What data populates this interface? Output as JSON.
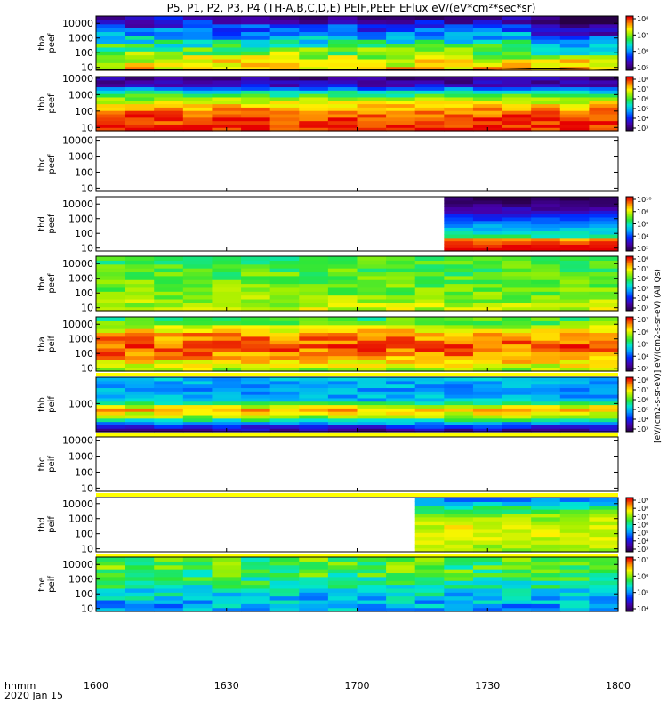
{
  "chart_data": {
    "type": "heatmap",
    "title": "P5, P1, P2, P3, P4 (TH-A,B,C,D,E) PEIF,PEEF EFlux eV/(eV*cm²*sec*sr)",
    "x_axis": {
      "unit_label": "hhmm",
      "date_label": "2020 Jan 15",
      "ticks": [
        "1600",
        "1630",
        "1700",
        "1730",
        "1800"
      ],
      "range_minutes": [
        0,
        120
      ]
    },
    "colorbar_label": "[eV/(cm2-s-sr-eV)] eV/(cm2-s-sr-eV) (All Qs)",
    "panels": [
      {
        "name": "tha-peef",
        "ylabel": [
          "tha",
          "peef"
        ],
        "yticks": [
          "10",
          "100",
          "1000",
          "10000"
        ],
        "yrange_log": [
          0.8,
          4.5
        ],
        "data_start_min": 0,
        "cbar_ticks": [
          "10⁵",
          "10⁶",
          "10⁷",
          "10⁸"
        ],
        "cbar_range": [
          4.8,
          8.5
        ],
        "levels": [
          7.8,
          7.6,
          7.2,
          6.7,
          6.1,
          5.6,
          5.2
        ],
        "trace": [
          0.85,
          0.85,
          0.85,
          0.85,
          0.85,
          0.85,
          0.85,
          0.85,
          0.85,
          0.85,
          0.85,
          0.85,
          0.85,
          0.85,
          0.9,
          0.95,
          0.95,
          0.9,
          0.85
        ]
      },
      {
        "name": "thb-peef",
        "ylabel": [
          "thb",
          "peef"
        ],
        "yticks": [
          "10",
          "100",
          "1000",
          "10000"
        ],
        "yrange_log": [
          0.8,
          4.1
        ],
        "data_start_min": 0,
        "cbar_ticks": [
          "10³",
          "10⁴",
          "10⁵",
          "10⁶",
          "10⁷",
          "10⁸"
        ],
        "cbar_range": [
          2.5,
          8.3
        ],
        "levels": [
          8.2,
          8.1,
          7.9,
          7.4,
          6.6,
          5.3,
          3.3,
          3.0
        ]
      },
      {
        "name": "thc-peef",
        "ylabel": [
          "thc",
          "peef"
        ],
        "yticks": [
          "10",
          "100",
          "1000",
          "10000"
        ],
        "yrange_log": [
          0.8,
          4.2
        ],
        "empty": true
      },
      {
        "name": "thd-peef",
        "ylabel": [
          "thd",
          "peef"
        ],
        "yticks": [
          "10",
          "100",
          "1000",
          "10000"
        ],
        "yrange_log": [
          0.8,
          4.5
        ],
        "data_start_min": 78,
        "cbar_ticks": [
          "10²",
          "10⁴",
          "10⁶",
          "10⁸",
          "10¹⁰"
        ],
        "cbar_range": [
          1.0,
          10.5
        ],
        "levels": [
          8.5,
          7.5,
          6.0,
          4.8,
          3.8,
          2.6,
          1.5,
          1.2
        ]
      },
      {
        "name": "the-peef",
        "ylabel": [
          "the",
          "peef"
        ],
        "yticks": [
          "10",
          "100",
          "1000",
          "10000"
        ],
        "yrange_log": [
          0.8,
          4.5
        ],
        "data_start_min": 0,
        "cbar_ticks": [
          "10³",
          "10⁴",
          "10⁵",
          "10⁶",
          "10⁷",
          "10⁸"
        ],
        "cbar_range": [
          2.5,
          8.4
        ],
        "levels": [
          6.8,
          6.5,
          6.3,
          6.2,
          6.1,
          6.0,
          5.9
        ]
      },
      {
        "name": "tha-peif",
        "ylabel": [
          "tha",
          "peif"
        ],
        "yticks": [
          "10",
          "100",
          "1000",
          "10000"
        ],
        "yrange_log": [
          0.8,
          4.5
        ],
        "data_start_min": 0,
        "cbar_ticks": [
          "10³",
          "10⁴",
          "10⁵",
          "10⁶",
          "10⁷"
        ],
        "cbar_range": [
          2.5,
          7.5
        ],
        "levels": [
          5.8,
          6.4,
          7.0,
          7.1,
          6.8,
          6.0,
          5.2
        ]
      },
      {
        "name": "thb-peif",
        "ylabel": [
          "thb",
          "peif"
        ],
        "yticks": [
          "1000"
        ],
        "yrange_log": [
          1.6,
          4.3
        ],
        "data_start_min": 0,
        "cbar_ticks": [
          "10³",
          "10⁴",
          "10⁵",
          "10⁶",
          "10⁷",
          "10⁸"
        ],
        "cbar_range": [
          2.5,
          8.4
        ],
        "levels": [
          2.8,
          4.5,
          6.5,
          7.6,
          5.0,
          4.7,
          4.8,
          4.9
        ]
      },
      {
        "name": "thc-peif",
        "ylabel": [
          "thc",
          "peif"
        ],
        "yticks": [
          "10",
          "100",
          "1000",
          "10000"
        ],
        "yrange_log": [
          0.8,
          4.2
        ],
        "empty": true
      },
      {
        "name": "thd-peif",
        "ylabel": [
          "thd",
          "peif"
        ],
        "yticks": [
          "10",
          "100",
          "1000",
          "10000"
        ],
        "yrange_log": [
          0.8,
          4.4
        ],
        "data_start_min": 74,
        "cbar_ticks": [
          "10³",
          "10⁴",
          "10⁵",
          "10⁶",
          "10⁷",
          "10⁸",
          "10⁹"
        ],
        "cbar_range": [
          2.5,
          9.3
        ],
        "levels": [
          7.0,
          7.4,
          7.6,
          7.5,
          7.0,
          6.0,
          4.5
        ]
      },
      {
        "name": "the-peif",
        "ylabel": [
          "the",
          "peif"
        ],
        "yticks": [
          "10",
          "100",
          "1000",
          "10000"
        ],
        "yrange_log": [
          0.8,
          4.5
        ],
        "data_start_min": 0,
        "cbar_ticks": [
          "10⁴",
          "10⁵",
          "10⁶",
          "10⁷"
        ],
        "cbar_range": [
          3.5,
          7.5
        ],
        "levels": [
          5.0,
          5.1,
          5.3,
          5.6,
          5.8,
          5.9,
          5.9
        ]
      }
    ]
  }
}
